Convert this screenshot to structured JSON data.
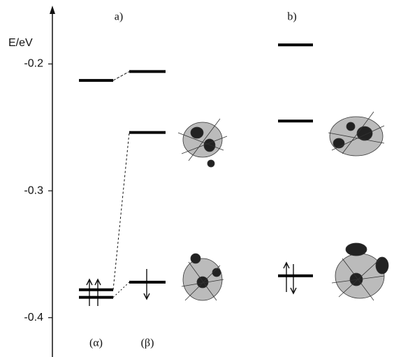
{
  "chart_data": {
    "type": "levels",
    "ylabel": "E/eV",
    "ylim": [
      -0.431,
      -0.154
    ],
    "yticks": [
      -0.2,
      -0.3,
      -0.4
    ],
    "panels": [
      {
        "label": "a)",
        "columns": [
          {
            "name": "(α)",
            "levels": [
              -0.213,
              -0.378,
              -0.384
            ]
          },
          {
            "name": "(β)",
            "levels": [
              -0.206,
              -0.254,
              -0.372
            ]
          }
        ]
      },
      {
        "label": "b)",
        "columns": [
          {
            "levels": [
              -0.185,
              -0.245,
              -0.367
            ]
          }
        ]
      }
    ]
  }
}
